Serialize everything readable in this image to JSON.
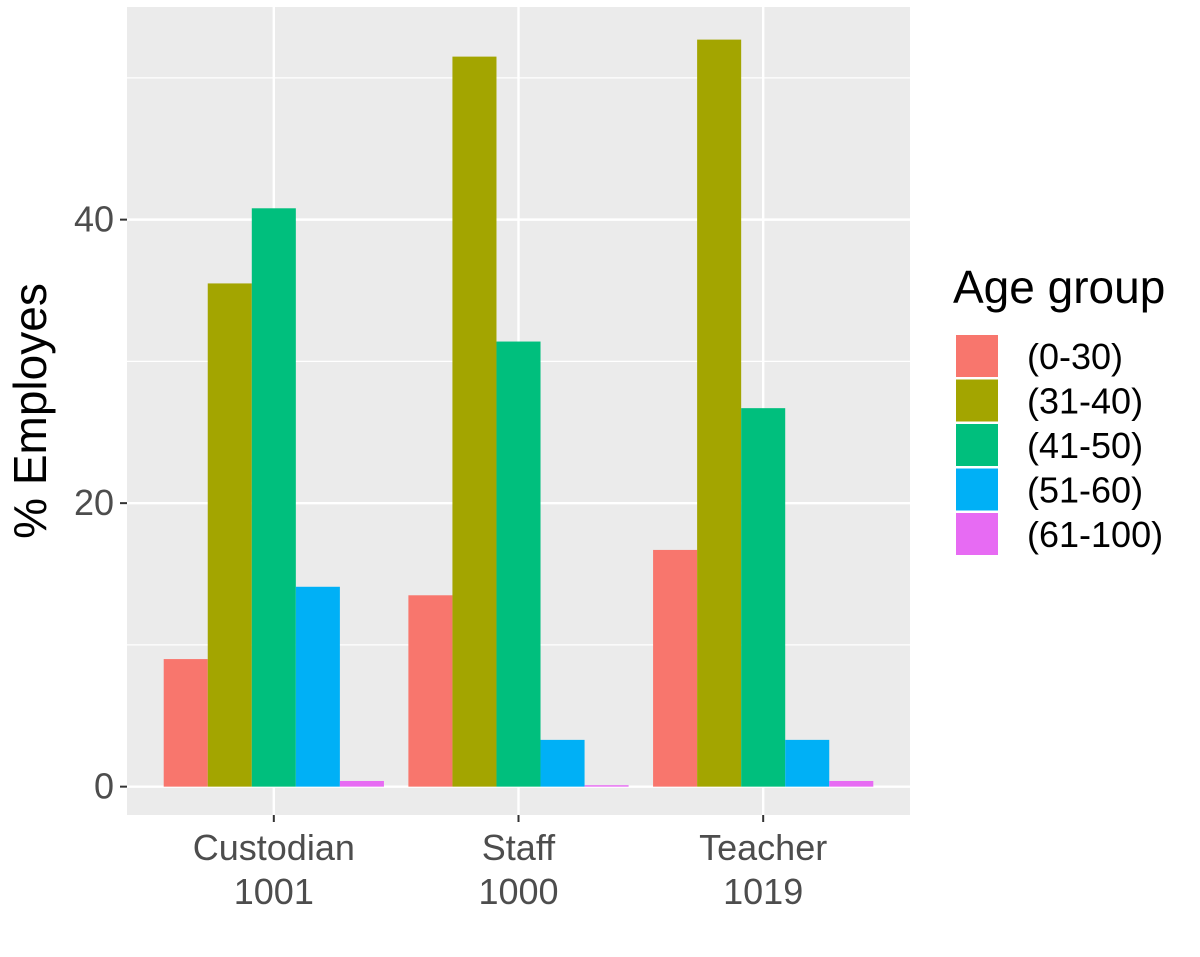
{
  "chart_data": {
    "type": "bar",
    "title": "",
    "xlabel": "",
    "ylabel": "% Employes",
    "ylim": [
      -2,
      55
    ],
    "yticks": [
      0,
      20,
      40
    ],
    "grid": true,
    "categories": [
      {
        "name": "Custodian",
        "count": "1001"
      },
      {
        "name": "Staff",
        "count": "1000"
      },
      {
        "name": "Teacher",
        "count": "1019"
      }
    ],
    "legend": {
      "title": "Age group",
      "position": "right"
    },
    "series": [
      {
        "name": "(0-30)",
        "color": "#F8766D",
        "values": [
          9.0,
          13.5,
          16.7
        ]
      },
      {
        "name": "(31-40)",
        "color": "#A3A500",
        "values": [
          35.5,
          51.5,
          52.7
        ]
      },
      {
        "name": "(41-50)",
        "color": "#00BF7D",
        "values": [
          40.8,
          31.4,
          26.7
        ]
      },
      {
        "name": "(51-60)",
        "color": "#00B0F6",
        "values": [
          14.1,
          3.3,
          3.3
        ]
      },
      {
        "name": "(61-100)",
        "color": "#E76BF3",
        "values": [
          0.4,
          0.1,
          0.4
        ]
      }
    ],
    "colors": {
      "panel": "#EBEBEB",
      "grid": "#FFFFFF",
      "tick_text": "#4D4D4D",
      "tick_mark": "#333333"
    }
  }
}
